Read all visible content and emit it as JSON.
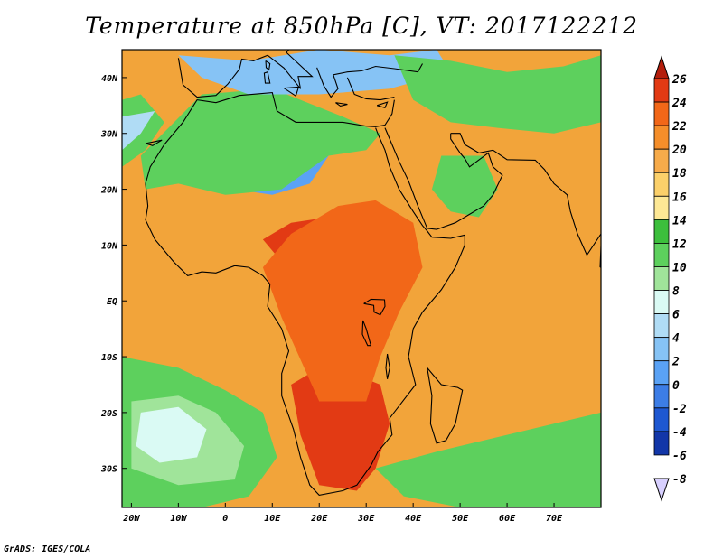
{
  "title": "Temperature at 850hPa [C], VT: 2017122212",
  "credit": "GrADS: IGES/COLA",
  "map": {
    "projection": "lat-lon",
    "lon_range": [
      -22,
      80
    ],
    "lat_range": [
      -37,
      45
    ],
    "lon_ticks": [
      {
        "value": -20,
        "label": "20W"
      },
      {
        "value": -10,
        "label": "10W"
      },
      {
        "value": 0,
        "label": "0"
      },
      {
        "value": 10,
        "label": "10E"
      },
      {
        "value": 20,
        "label": "20E"
      },
      {
        "value": 30,
        "label": "30E"
      },
      {
        "value": 40,
        "label": "40E"
      },
      {
        "value": 50,
        "label": "50E"
      },
      {
        "value": 60,
        "label": "60E"
      },
      {
        "value": 70,
        "label": "70E"
      }
    ],
    "lat_ticks": [
      {
        "value": 40,
        "label": "40N"
      },
      {
        "value": 30,
        "label": "30N"
      },
      {
        "value": 20,
        "label": "20N"
      },
      {
        "value": 10,
        "label": "10N"
      },
      {
        "value": 0,
        "label": "EQ"
      },
      {
        "value": -10,
        "label": "10S"
      },
      {
        "value": -20,
        "label": "20S"
      },
      {
        "value": -30,
        "label": "30S"
      }
    ],
    "background_color": "#f2a43a"
  },
  "colorbar": {
    "levels": [
      "26",
      "24",
      "22",
      "20",
      "18",
      "16",
      "14",
      "12",
      "10",
      "8",
      "6",
      "4",
      "2",
      "0",
      "-2",
      "-4",
      "-6",
      "-8"
    ],
    "colors": [
      "#b41e0c",
      "#e23a14",
      "#f26718",
      "#f58e2a",
      "#f7ab4a",
      "#fbd06a",
      "#fde895",
      "#3cbf3c",
      "#5dd05d",
      "#a0e49a",
      "#dafaf4",
      "#b0dcf5",
      "#86c3f5",
      "#5aa2f5",
      "#3c7de6",
      "#1e58d2",
      "#1236a8",
      "#0c1a70"
    ],
    "arrows": true
  },
  "regions": [
    {
      "name": "hot-core-africa",
      "color": "#e23a14",
      "lons": [
        8,
        14,
        22,
        30,
        36,
        38,
        33,
        28,
        20,
        12
      ],
      "lats": [
        11,
        14,
        15,
        15,
        13,
        9,
        5,
        3,
        4,
        7
      ]
    },
    {
      "name": "hot-core-southern",
      "color": "#e23a14",
      "lons": [
        14,
        20,
        27,
        33,
        35,
        32,
        28,
        20,
        16
      ],
      "lats": [
        -15,
        -12,
        -13,
        -15,
        -22,
        -30,
        -34,
        -33,
        -24
      ]
    },
    {
      "name": "warm-central",
      "color": "#f26718",
      "lons": [
        8,
        14,
        24,
        32,
        40,
        42,
        37,
        33,
        30,
        20,
        12
      ],
      "lats": [
        6,
        12,
        17,
        18,
        14,
        6,
        -2,
        -10,
        -18,
        -18,
        -3
      ]
    },
    {
      "name": "cool-sahara",
      "color": "#5aa2f5",
      "lons": [
        -14,
        -5,
        5,
        12,
        19,
        22,
        18,
        10,
        2,
        -8,
        -14
      ],
      "lats": [
        28,
        34,
        35,
        34,
        32,
        26,
        21,
        19,
        20,
        22,
        25
      ]
    },
    {
      "name": "cool-sahara-core",
      "color": "#3c7de6",
      "lons": [
        -6,
        2,
        10,
        16,
        19,
        12,
        4,
        -3
      ],
      "lats": [
        30,
        34,
        33,
        30,
        26,
        22,
        23,
        25
      ]
    },
    {
      "name": "green-north-africa",
      "color": "#5dd05d",
      "lons": [
        -18,
        -5,
        10,
        25,
        33,
        30,
        22,
        12,
        0,
        -10,
        -17
      ],
      "lats": [
        26,
        37,
        38,
        33,
        30,
        27,
        26,
        20,
        19,
        21,
        20
      ]
    },
    {
      "name": "cool-mediterranean",
      "color": "#86c3f5",
      "lons": [
        -10,
        5,
        20,
        35,
        45,
        48,
        35,
        20,
        5,
        -5
      ],
      "lats": [
        44,
        43,
        45,
        44,
        45,
        41,
        38,
        37,
        37,
        40
      ]
    },
    {
      "name": "green-middle-east",
      "color": "#5dd05d",
      "lons": [
        36,
        48,
        60,
        72,
        80,
        80,
        70,
        58,
        48,
        40
      ],
      "lats": [
        44,
        43,
        41,
        42,
        44,
        32,
        30,
        31,
        32,
        36
      ]
    },
    {
      "name": "green-arabia",
      "color": "#5dd05d",
      "lons": [
        46,
        55,
        58,
        54,
        48,
        44
      ],
      "lats": [
        26,
        26,
        20,
        15,
        16,
        20
      ]
    },
    {
      "name": "green-atlantic-south",
      "color": "#5dd05d",
      "lons": [
        -22,
        -10,
        0,
        8,
        11,
        5,
        -5,
        -22
      ],
      "lats": [
        -10,
        -12,
        -16,
        -20,
        -28,
        -35,
        -37,
        -37
      ]
    },
    {
      "name": "cool-atlantic-south",
      "color": "#a0e49a",
      "lons": [
        -20,
        -10,
        -2,
        4,
        2,
        -10,
        -20
      ],
      "lats": [
        -18,
        -17,
        -20,
        -26,
        -32,
        -33,
        -30
      ]
    },
    {
      "name": "pale-atlantic-south",
      "color": "#dafaf4",
      "lons": [
        -18,
        -10,
        -4,
        -6,
        -14,
        -19
      ],
      "lats": [
        -20,
        -19,
        -23,
        -28,
        -29,
        -26
      ]
    },
    {
      "name": "green-indian-south",
      "color": "#5dd05d",
      "lons": [
        32,
        45,
        60,
        80,
        80,
        65,
        50,
        38
      ],
      "lats": [
        -30,
        -27,
        -24,
        -20,
        -37,
        -37,
        -37,
        -35
      ]
    },
    {
      "name": "green-atlantic-north",
      "color": "#5dd05d",
      "lons": [
        -22,
        -17,
        -13,
        -18,
        -22
      ],
      "lats": [
        24,
        27,
        32,
        37,
        36
      ]
    },
    {
      "name": "pale-atlantic-north",
      "color": "#b0dcf5",
      "lons": [
        -22,
        -18,
        -15,
        -22
      ],
      "lats": [
        27,
        30,
        34,
        33
      ]
    }
  ]
}
